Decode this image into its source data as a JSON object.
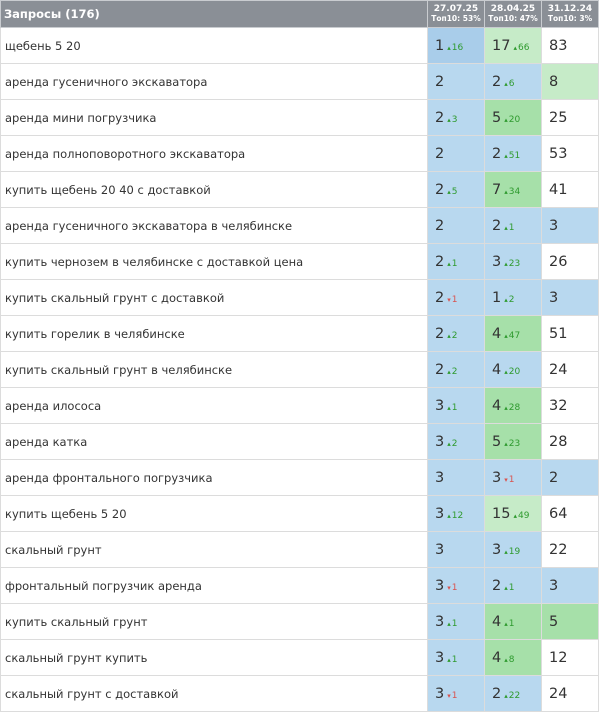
{
  "header": {
    "queries_label": "Запросы (176)",
    "dates": [
      {
        "date": "27.07.25",
        "top": "Топ10: 53%"
      },
      {
        "date": "28.04.25",
        "top": "Топ10: 47%"
      },
      {
        "date": "31.12.24",
        "top": "Топ10: 3%"
      }
    ]
  },
  "rows": [
    {
      "query": "щебень 5 20",
      "cells": [
        {
          "v": "1",
          "d": "16",
          "dir": "up",
          "bg": "bg-blue-dark"
        },
        {
          "v": "17",
          "d": "66",
          "dir": "up",
          "bg": "bg-green-light"
        },
        {
          "v": "83",
          "d": "",
          "dir": "",
          "bg": "bg-white"
        }
      ]
    },
    {
      "query": "аренда гусеничного экскаватора",
      "cells": [
        {
          "v": "2",
          "d": "",
          "dir": "",
          "bg": "bg-blue"
        },
        {
          "v": "2",
          "d": "6",
          "dir": "up",
          "bg": "bg-blue"
        },
        {
          "v": "8",
          "d": "",
          "dir": "",
          "bg": "bg-green-light"
        }
      ]
    },
    {
      "query": "аренда мини погрузчика",
      "cells": [
        {
          "v": "2",
          "d": "3",
          "dir": "up",
          "bg": "bg-blue"
        },
        {
          "v": "5",
          "d": "20",
          "dir": "up",
          "bg": "bg-green"
        },
        {
          "v": "25",
          "d": "",
          "dir": "",
          "bg": "bg-white"
        }
      ]
    },
    {
      "query": "аренда полноповоротного экскаватора",
      "cells": [
        {
          "v": "2",
          "d": "",
          "dir": "",
          "bg": "bg-blue"
        },
        {
          "v": "2",
          "d": "51",
          "dir": "up",
          "bg": "bg-blue"
        },
        {
          "v": "53",
          "d": "",
          "dir": "",
          "bg": "bg-white"
        }
      ]
    },
    {
      "query": "купить щебень 20 40 с доставкой",
      "cells": [
        {
          "v": "2",
          "d": "5",
          "dir": "up",
          "bg": "bg-blue"
        },
        {
          "v": "7",
          "d": "34",
          "dir": "up",
          "bg": "bg-green"
        },
        {
          "v": "41",
          "d": "",
          "dir": "",
          "bg": "bg-white"
        }
      ]
    },
    {
      "query": "аренда гусеничного экскаватора в челябинске",
      "cells": [
        {
          "v": "2",
          "d": "",
          "dir": "",
          "bg": "bg-blue"
        },
        {
          "v": "2",
          "d": "1",
          "dir": "up",
          "bg": "bg-blue"
        },
        {
          "v": "3",
          "d": "",
          "dir": "",
          "bg": "bg-blue"
        }
      ]
    },
    {
      "query": "купить чернозем в челябинске с доставкой цена",
      "cells": [
        {
          "v": "2",
          "d": "1",
          "dir": "up",
          "bg": "bg-blue"
        },
        {
          "v": "3",
          "d": "23",
          "dir": "up",
          "bg": "bg-blue"
        },
        {
          "v": "26",
          "d": "",
          "dir": "",
          "bg": "bg-white"
        }
      ]
    },
    {
      "query": "купить скальный грунт с доставкой",
      "cells": [
        {
          "v": "2",
          "d": "1",
          "dir": "down",
          "bg": "bg-blue"
        },
        {
          "v": "1",
          "d": "2",
          "dir": "up",
          "bg": "bg-blue"
        },
        {
          "v": "3",
          "d": "",
          "dir": "",
          "bg": "bg-blue"
        }
      ]
    },
    {
      "query": "купить горелик в челябинске",
      "cells": [
        {
          "v": "2",
          "d": "2",
          "dir": "up",
          "bg": "bg-blue"
        },
        {
          "v": "4",
          "d": "47",
          "dir": "up",
          "bg": "bg-green"
        },
        {
          "v": "51",
          "d": "",
          "dir": "",
          "bg": "bg-white"
        }
      ]
    },
    {
      "query": "купить скальный грунт в челябинске",
      "cells": [
        {
          "v": "2",
          "d": "2",
          "dir": "up",
          "bg": "bg-blue"
        },
        {
          "v": "4",
          "d": "20",
          "dir": "up",
          "bg": "bg-blue"
        },
        {
          "v": "24",
          "d": "",
          "dir": "",
          "bg": "bg-white"
        }
      ]
    },
    {
      "query": "аренда илососа",
      "cells": [
        {
          "v": "3",
          "d": "1",
          "dir": "up",
          "bg": "bg-blue"
        },
        {
          "v": "4",
          "d": "28",
          "dir": "up",
          "bg": "bg-green"
        },
        {
          "v": "32",
          "d": "",
          "dir": "",
          "bg": "bg-white"
        }
      ]
    },
    {
      "query": "аренда катка",
      "cells": [
        {
          "v": "3",
          "d": "2",
          "dir": "up",
          "bg": "bg-blue"
        },
        {
          "v": "5",
          "d": "23",
          "dir": "up",
          "bg": "bg-green"
        },
        {
          "v": "28",
          "d": "",
          "dir": "",
          "bg": "bg-white"
        }
      ]
    },
    {
      "query": "аренда фронтального погрузчика",
      "cells": [
        {
          "v": "3",
          "d": "",
          "dir": "",
          "bg": "bg-blue"
        },
        {
          "v": "3",
          "d": "1",
          "dir": "down",
          "bg": "bg-blue"
        },
        {
          "v": "2",
          "d": "",
          "dir": "",
          "bg": "bg-blue"
        }
      ]
    },
    {
      "query": "купить щебень 5 20",
      "cells": [
        {
          "v": "3",
          "d": "12",
          "dir": "up",
          "bg": "bg-blue"
        },
        {
          "v": "15",
          "d": "49",
          "dir": "up",
          "bg": "bg-green-light"
        },
        {
          "v": "64",
          "d": "",
          "dir": "",
          "bg": "bg-white"
        }
      ]
    },
    {
      "query": "скальный грунт",
      "cells": [
        {
          "v": "3",
          "d": "",
          "dir": "",
          "bg": "bg-blue"
        },
        {
          "v": "3",
          "d": "19",
          "dir": "up",
          "bg": "bg-blue"
        },
        {
          "v": "22",
          "d": "",
          "dir": "",
          "bg": "bg-white"
        }
      ]
    },
    {
      "query": "фронтальный погрузчик аренда",
      "cells": [
        {
          "v": "3",
          "d": "1",
          "dir": "down",
          "bg": "bg-blue"
        },
        {
          "v": "2",
          "d": "1",
          "dir": "up",
          "bg": "bg-blue"
        },
        {
          "v": "3",
          "d": "",
          "dir": "",
          "bg": "bg-blue"
        }
      ]
    },
    {
      "query": "купить скальный грунт",
      "cells": [
        {
          "v": "3",
          "d": "1",
          "dir": "up",
          "bg": "bg-blue"
        },
        {
          "v": "4",
          "d": "1",
          "dir": "up",
          "bg": "bg-green"
        },
        {
          "v": "5",
          "d": "",
          "dir": "",
          "bg": "bg-green"
        }
      ]
    },
    {
      "query": "скальный грунт купить",
      "cells": [
        {
          "v": "3",
          "d": "1",
          "dir": "up",
          "bg": "bg-blue"
        },
        {
          "v": "4",
          "d": "8",
          "dir": "up",
          "bg": "bg-green"
        },
        {
          "v": "12",
          "d": "",
          "dir": "",
          "bg": "bg-white"
        }
      ]
    },
    {
      "query": "скальный грунт с доставкой",
      "cells": [
        {
          "v": "3",
          "d": "1",
          "dir": "down",
          "bg": "bg-blue"
        },
        {
          "v": "2",
          "d": "22",
          "dir": "up",
          "bg": "bg-blue"
        },
        {
          "v": "24",
          "d": "",
          "dir": "",
          "bg": "bg-white"
        }
      ]
    }
  ]
}
